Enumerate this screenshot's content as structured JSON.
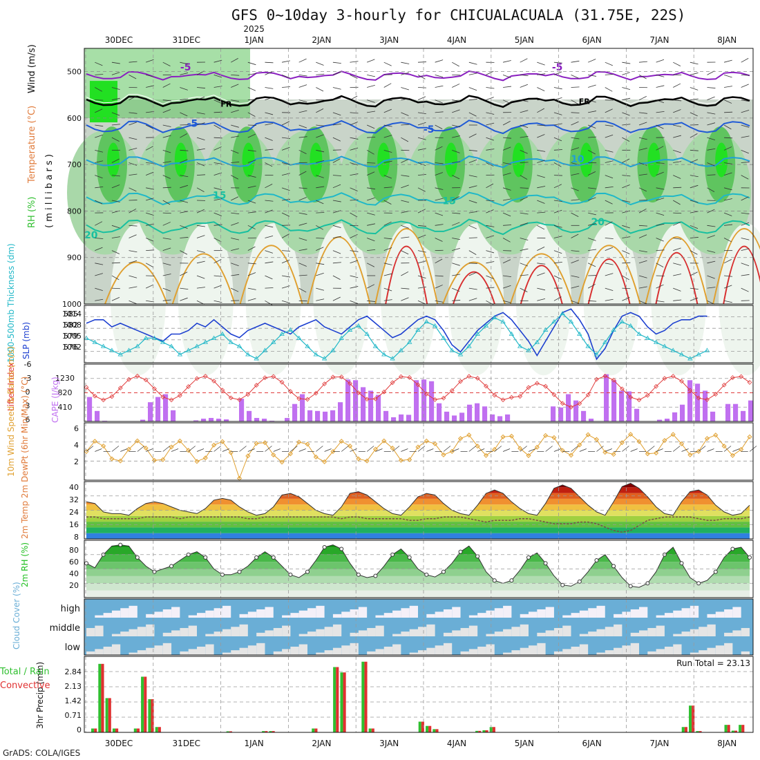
{
  "header": {
    "title": "GFS 0~10day 3-hourly for CHICUALACUALA (31.75E, 22S)",
    "year": "2025",
    "credit": "GrADS: COLA/IGES",
    "run_total": "Run Total = 23.13"
  },
  "colors": {
    "rh_light": "#a9d8a9",
    "rh_mid": "#5fc45f",
    "rh_bright": "#22e022",
    "rh_grey": "#c9d4c9",
    "temp_purple": "#8a1fc0",
    "temp_blue": "#1f5ad6",
    "temp_cyan": "#1fa0d6",
    "temp_teal": "#18c0a0",
    "temp_orange": "#e0a030",
    "temp_red": "#d83030",
    "freezing": "#000000",
    "slp": "#1c3fd0",
    "thickness": "#22b8c8",
    "lifted": "#e03a3a",
    "cape": "#c070f0",
    "wind_speed": "#e0a030",
    "barb": "#333333",
    "cloud": "#6aaed6",
    "cloud_gap": "#e5e5e5",
    "precip_total": "#2fbf2f",
    "precip_conv": "#e03030",
    "rh2m": "#1fbf1f"
  },
  "chart_data": [
    {
      "type": "heatmap",
      "name": "upper-air",
      "x": [
        "30DEC",
        "31DEC",
        "1JAN",
        "2JAN",
        "3JAN",
        "4JAN",
        "5JAN",
        "6JAN",
        "7JAN",
        "8JAN"
      ],
      "y_ticks": [
        500,
        600,
        700,
        800,
        900,
        1000
      ],
      "ylabel_parts": [
        "RH (%)",
        "Temperature (°C)",
        "Wind (m/s)",
        "( m i l l i b a r s )"
      ],
      "temp_contour_labels": [
        {
          "text": "-5",
          "x": 1.5,
          "p": 490
        },
        {
          "text": "-5",
          "x": 7.0,
          "p": 490
        },
        {
          "text": "FR",
          "x": 2.1,
          "p": 568
        },
        {
          "text": "FR",
          "x": 7.4,
          "p": 562
        },
        {
          "text": "-5",
          "x": 1.6,
          "p": 611
        },
        {
          "text": "-5",
          "x": 5.1,
          "p": 624
        },
        {
          "text": "10",
          "x": 7.3,
          "p": 688
        },
        {
          "text": "15",
          "x": 2.0,
          "p": 766
        },
        {
          "text": "15",
          "x": 5.4,
          "p": 778
        },
        {
          "text": "20",
          "x": 0.1,
          "p": 851
        },
        {
          "text": "20",
          "x": 7.6,
          "p": 823
        }
      ]
    },
    {
      "type": "line",
      "name": "thickness-slp",
      "ylabel": "1000-500mb Thickness (dm)",
      "ylabel2": "SLP (mb)",
      "yticks_left": [
        "585",
        "582",
        "579",
        "576"
      ],
      "yticks_right": [
        "1014",
        "1008",
        "1005",
        "1002"
      ],
      "series": [
        {
          "name": "SLP",
          "values": [
            1011,
            1012,
            1012,
            1010,
            1011,
            1010,
            1009,
            1008,
            1007,
            1006,
            1008,
            1008,
            1009,
            1011,
            1010,
            1012,
            1010,
            1008,
            1007,
            1009,
            1010,
            1011,
            1010,
            1009,
            1008,
            1010,
            1011,
            1012,
            1010,
            1009,
            1008,
            1010,
            1012,
            1013,
            1011,
            1009,
            1007,
            1008,
            1010,
            1012,
            1013,
            1012,
            1009,
            1005,
            1003,
            1006,
            1009,
            1011,
            1013,
            1014,
            1012,
            1009,
            1006,
            1002,
            1006,
            1010,
            1014,
            1015,
            1012,
            1008,
            1001,
            1004,
            1009,
            1013,
            1014,
            1013,
            1010,
            1008,
            1009,
            1011,
            1012,
            1012,
            1013,
            1013
          ]
        },
        {
          "name": "Thickness",
          "values": [
            580,
            579,
            578,
            577,
            576,
            577,
            578,
            580,
            580,
            579,
            578,
            576,
            577,
            578,
            579,
            580,
            581,
            579,
            578,
            576,
            575,
            577,
            579,
            581,
            582,
            580,
            578,
            576,
            575,
            577,
            580,
            582,
            583,
            581,
            578,
            576,
            575,
            577,
            579,
            582,
            584,
            583,
            580,
            577,
            576,
            578,
            581,
            583,
            585,
            584,
            581,
            578,
            577,
            579,
            582,
            584,
            586,
            584,
            581,
            578,
            576,
            579,
            582,
            584,
            583,
            581,
            580,
            579,
            578,
            577,
            576,
            575,
            576,
            577
          ]
        }
      ]
    },
    {
      "type": "bar",
      "name": "cape-lifted",
      "ylabel": "CAPE (J/kg)",
      "ylabel2": "Lifted Index",
      "yticks_left": [
        "1230",
        "820",
        "410"
      ],
      "yticks_right": [
        "-6",
        "-3",
        "0",
        "3",
        "6"
      ],
      "cape": [
        700,
        300,
        20,
        0,
        0,
        0,
        10,
        50,
        550,
        700,
        780,
        320,
        0,
        0,
        30,
        80,
        100,
        80,
        60,
        0,
        650,
        300,
        100,
        80,
        20,
        0,
        100,
        500,
        780,
        320,
        300,
        280,
        320,
        550,
        1200,
        1180,
        980,
        880,
        760,
        300,
        120,
        200,
        190,
        1180,
        1200,
        1150,
        520,
        280,
        170,
        250,
        480,
        520,
        430,
        200,
        150,
        200,
        0,
        0,
        0,
        0,
        0,
        430,
        400,
        780,
        600,
        300,
        80,
        0,
        1350,
        1180,
        880,
        860,
        360,
        0,
        0,
        50,
        80,
        260,
        480,
        1180,
        1080,
        880,
        280,
        0,
        500,
        500,
        300,
        600
      ]
    },
    {
      "type": "line",
      "name": "wind10m",
      "ylabel": "10m Wind Speed & Barbs (m/s)",
      "y_ticks": [
        "6",
        "4",
        "2"
      ],
      "ylim": [
        0,
        7
      ]
    },
    {
      "type": "area",
      "name": "temp2m",
      "ylabel": "2m Temp 2m DewPt (6hr Min/Max) (°C)",
      "y_ticks": [
        "40",
        "32",
        "24",
        "16",
        "8"
      ],
      "ylim": [
        8,
        42
      ],
      "series": [
        {
          "name": "Temp",
          "values": [
            30,
            29,
            24,
            23,
            23,
            22,
            26,
            29,
            30,
            29,
            27,
            25,
            24,
            23,
            26,
            31,
            32,
            31,
            27,
            24,
            22,
            23,
            27,
            34,
            35,
            33,
            29,
            25,
            23,
            22,
            27,
            35,
            36,
            34,
            30,
            26,
            23,
            22,
            27,
            33,
            35,
            34,
            29,
            25,
            23,
            22,
            28,
            35,
            37,
            35,
            30,
            26,
            23,
            22,
            29,
            38,
            40,
            38,
            33,
            28,
            24,
            22,
            30,
            39,
            41,
            38,
            33,
            27,
            23,
            22,
            30,
            36,
            37,
            34,
            28,
            24,
            22,
            23,
            28
          ]
        },
        {
          "name": "DewPt",
          "values": [
            21,
            21,
            20,
            20,
            20,
            20,
            20,
            21,
            21,
            21,
            21,
            20,
            21,
            21,
            21,
            21,
            21,
            21,
            21,
            20,
            20,
            21,
            21,
            21,
            21,
            21,
            21,
            21,
            21,
            21,
            20,
            21,
            21,
            20,
            20,
            20,
            20,
            20,
            19,
            19,
            20,
            20,
            21,
            21,
            21,
            20,
            19,
            18,
            19,
            19,
            19,
            20,
            20,
            19,
            18,
            17,
            17,
            17,
            18,
            18,
            17,
            15,
            13,
            12,
            13,
            16,
            19,
            20,
            21,
            21,
            21,
            21,
            20,
            19,
            19,
            20,
            20,
            20,
            21
          ]
        }
      ]
    },
    {
      "type": "area",
      "name": "rh2m",
      "ylabel": "2m RH (%)",
      "y_ticks": [
        "80",
        "60",
        "40",
        "20"
      ],
      "ylim": [
        0,
        100
      ],
      "series": [
        {
          "name": "RH",
          "values": [
            60,
            52,
            75,
            90,
            92,
            90,
            70,
            55,
            45,
            50,
            55,
            65,
            75,
            80,
            70,
            50,
            40,
            40,
            45,
            55,
            70,
            80,
            70,
            55,
            40,
            35,
            45,
            65,
            88,
            92,
            85,
            60,
            40,
            35,
            38,
            55,
            75,
            85,
            70,
            50,
            40,
            36,
            45,
            60,
            80,
            90,
            72,
            45,
            30,
            25,
            30,
            48,
            70,
            78,
            60,
            38,
            22,
            20,
            28,
            45,
            65,
            75,
            55,
            35,
            20,
            18,
            25,
            45,
            75,
            88,
            60,
            35,
            25,
            30,
            45,
            70,
            85,
            88,
            70
          ]
        }
      ]
    },
    {
      "type": "heatmap",
      "name": "clouds",
      "ylabel": "Cloud Cover (%)",
      "rows": [
        "high",
        "middle",
        "low"
      ]
    },
    {
      "type": "bar",
      "name": "precip",
      "ylabel": "3hr Precip (mm)",
      "legend": [
        "Total / Rain",
        "Convective"
      ],
      "y_ticks": [
        "2.84",
        "2.13",
        "1.42",
        "0.71",
        "0"
      ],
      "ylim": [
        0,
        3.55
      ],
      "values": [
        0.18,
        3.2,
        1.6,
        0.18,
        0,
        0,
        0.18,
        2.6,
        1.55,
        0.25,
        0,
        0,
        0,
        0,
        0,
        0,
        0,
        0,
        0,
        0.05,
        0,
        0,
        0,
        0,
        0.06,
        0.06,
        0,
        0,
        0,
        0,
        0,
        0.18,
        0,
        0,
        3.05,
        2.8,
        0,
        0,
        3.3,
        0.18,
        0,
        0,
        0,
        0,
        0,
        0,
        0.5,
        0.3,
        0.15,
        0,
        0,
        0,
        0,
        0,
        0.07,
        0.1,
        0.25,
        0,
        0,
        0,
        0,
        0,
        0,
        0,
        0,
        0,
        0,
        0,
        0,
        0,
        0,
        0,
        0,
        0,
        0,
        0,
        0,
        0,
        0,
        0,
        0,
        0,
        0,
        0.25,
        1.25,
        0.06,
        0,
        0,
        0,
        0.35,
        0.08,
        0.35,
        0,
        0
      ]
    }
  ]
}
